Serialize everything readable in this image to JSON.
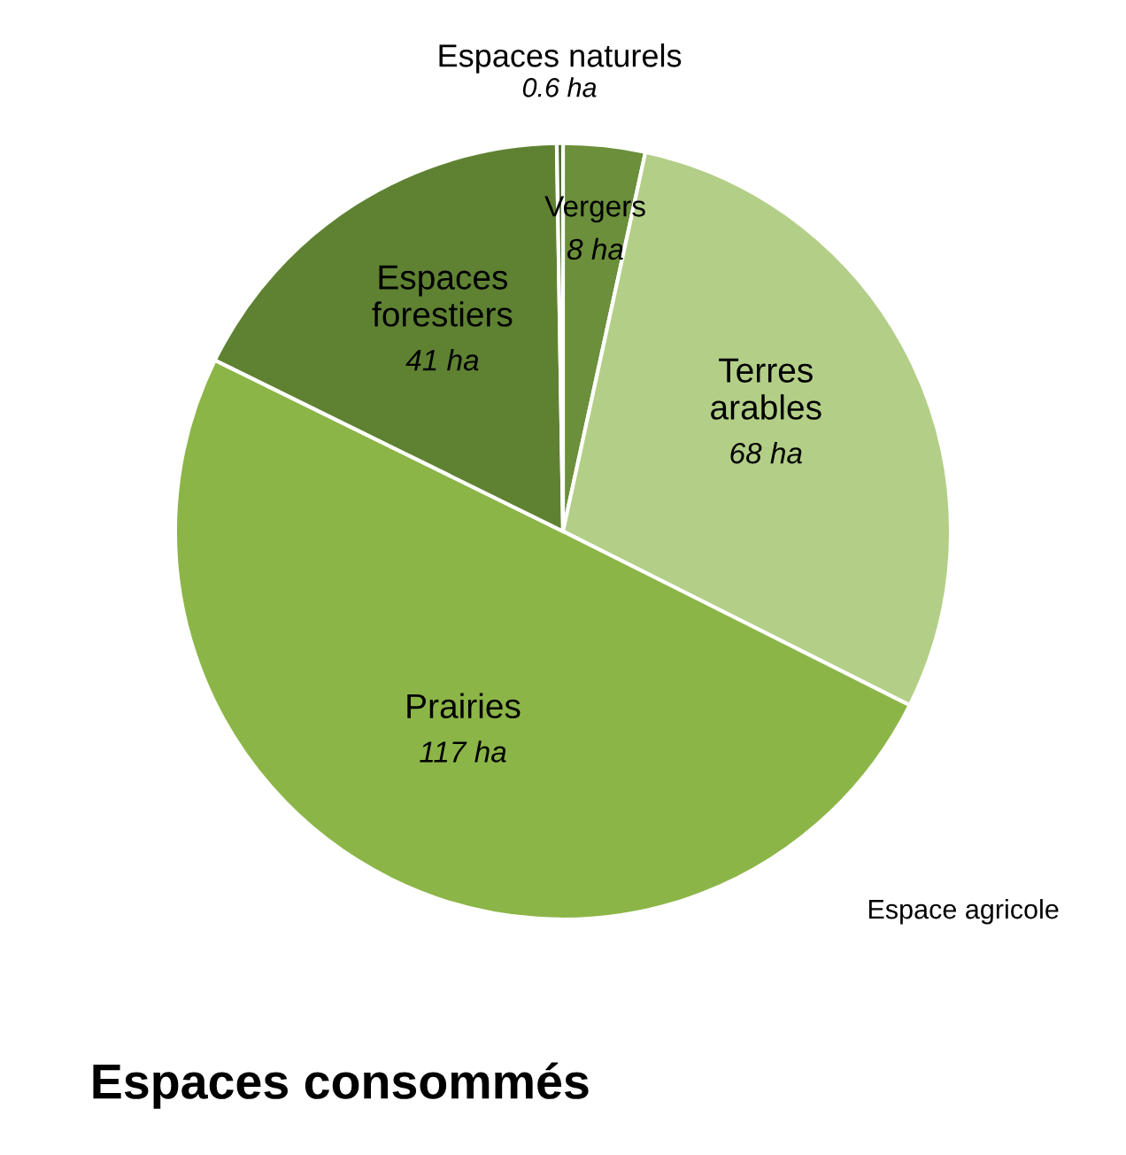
{
  "chart_data": {
    "type": "pie",
    "title": "Espaces consommés",
    "categories": [
      "Vergers",
      "Terres\narables",
      "Prairies",
      "Espaces\nforestiers",
      "Espaces naturels"
    ],
    "values": [
      8,
      68,
      117,
      41,
      0.6
    ],
    "value_labels": [
      "8 ha",
      "68 ha",
      "117 ha",
      "41 ha",
      "0.6 ha"
    ],
    "colors": [
      "#6b8f3a",
      "#b3cf87",
      "#8cb547",
      "#5f8232",
      "#4a6a28"
    ],
    "annotations": [
      "Espace agricole"
    ]
  }
}
